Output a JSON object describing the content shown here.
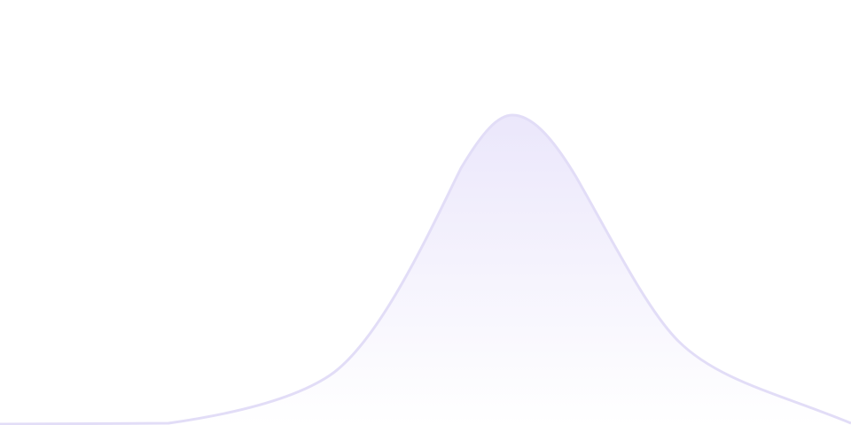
{
  "graphic": {
    "shape": "single-peak wave area",
    "colors": {
      "stroke": "#e2ddf7",
      "fill_top": "#ebe7fb",
      "fill_bottom": "#ffffff",
      "background": "#ffffff"
    }
  }
}
